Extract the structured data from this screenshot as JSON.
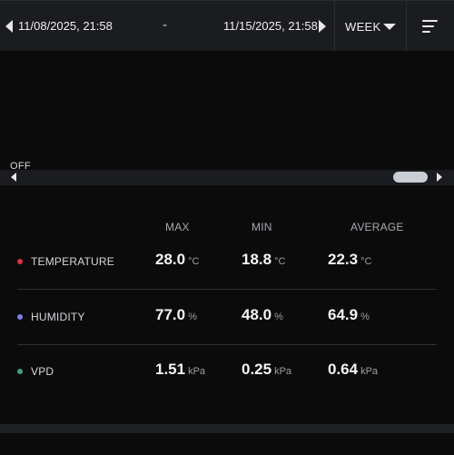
{
  "header": {
    "start_date": "11/08/2025, 21:58",
    "separator": "-",
    "end_date": "11/15/2025, 21:58",
    "period": "WEEK",
    "icons": [
      "chevron-left-icon",
      "chevron-right-icon",
      "caret-down-icon",
      "sort-icon"
    ]
  },
  "chart": {
    "off_label": "OFF"
  },
  "stats": {
    "columns": [
      "MAX",
      "MIN",
      "AVERAGE"
    ],
    "rows": [
      {
        "label": "TEMPERATURE",
        "color": "#e0303f",
        "max": "28.0",
        "min": "18.8",
        "avg": "22.3",
        "unit": "°C"
      },
      {
        "label": "HUMIDITY",
        "color": "#7b7fe6",
        "max": "77.0",
        "min": "48.0",
        "avg": "64.9",
        "unit": "%"
      },
      {
        "label": "VPD",
        "color": "#3fa37a",
        "max": "1.51",
        "min": "0.25",
        "avg": "0.64",
        "unit": "kPa"
      }
    ]
  }
}
